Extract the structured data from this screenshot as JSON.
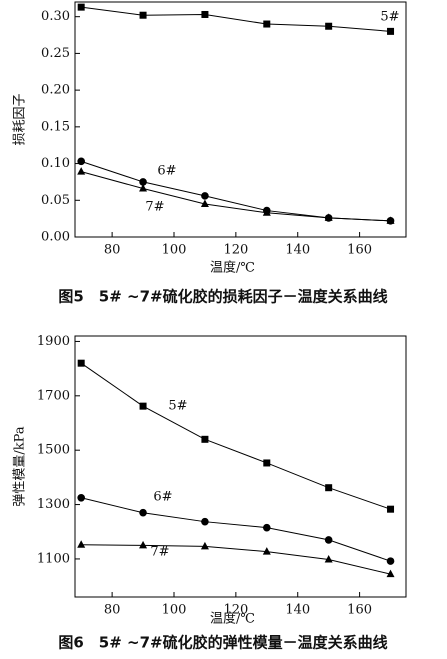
{
  "chart_data": [
    {
      "type": "line",
      "caption": "图5　5# ~7#硫化胶的损耗因子－温度关系曲线",
      "x_label": "温度/℃",
      "y_label": "损耗因子",
      "x": [
        70,
        90,
        110,
        130,
        150,
        170
      ],
      "series": [
        {
          "name": "5#",
          "color": "#000000",
          "marker": "square",
          "values": [
            0.313,
            0.302,
            0.303,
            0.29,
            0.287,
            0.28
          ]
        },
        {
          "name": "6#",
          "color": "#000000",
          "marker": "circle",
          "values": [
            0.103,
            0.075,
            0.056,
            0.036,
            0.026,
            0.022
          ]
        },
        {
          "name": "7#",
          "color": "#000000",
          "marker": "triangle",
          "values": [
            0.089,
            0.066,
            0.045,
            0.033,
            0.026,
            0.022
          ]
        }
      ],
      "xlim": [
        68,
        175
      ],
      "xticks": [
        80,
        100,
        120,
        140,
        160
      ],
      "ylim": [
        0,
        0.32
      ],
      "yticks": [
        {
          "value": 0,
          "label": "0.00"
        },
        {
          "value": 0.05,
          "label": "0.05"
        },
        {
          "value": 0.1,
          "label": "0.10"
        },
        {
          "value": 0.15,
          "label": "0.15"
        },
        {
          "value": 0.2,
          "label": "0.20"
        },
        {
          "value": 0.25,
          "label": "0.25"
        },
        {
          "value": 0.3,
          "label": "0.30"
        }
      ]
    },
    {
      "type": "line",
      "caption": "图6　5# ~7#硫化胶的弹性模量－温度关系曲线",
      "x_label": "温度/℃",
      "y_label": "弹性模量/kPa",
      "x": [
        70,
        90,
        110,
        130,
        150,
        170
      ],
      "series": [
        {
          "name": "5#",
          "color": "#000000",
          "marker": "square",
          "values": [
            1820,
            1662,
            1540,
            1453,
            1362,
            1283
          ]
        },
        {
          "name": "6#",
          "color": "#000000",
          "marker": "circle",
          "values": [
            1325,
            1270,
            1237,
            1215,
            1170,
            1092
          ]
        },
        {
          "name": "7#",
          "color": "#000000",
          "marker": "triangle",
          "values": [
            1152,
            1150,
            1146,
            1127,
            1098,
            1044
          ]
        }
      ],
      "xlim": [
        68,
        175
      ],
      "xticks": [
        80,
        100,
        120,
        140,
        160
      ],
      "ylim": [
        960,
        1920
      ],
      "yticks": [
        1100,
        1300,
        1500,
        1700,
        1900
      ]
    }
  ]
}
